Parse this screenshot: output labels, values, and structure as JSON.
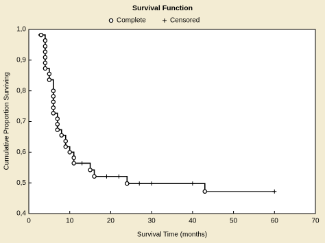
{
  "chart_data": {
    "type": "survival",
    "title": "Survival Function",
    "x_label": "Survival Time (months)",
    "y_label": "Cumulative Proportion Surviving",
    "xlim": [
      0,
      70
    ],
    "xticks": [
      0,
      10,
      20,
      30,
      40,
      50,
      60,
      70
    ],
    "ylim": [
      0.4,
      1.0
    ],
    "yticks": [
      {
        "value": 0.4,
        "label": "0,4"
      },
      {
        "value": 0.5,
        "label": "0,5"
      },
      {
        "value": 0.6,
        "label": "0,6"
      },
      {
        "value": 0.7,
        "label": "0,7"
      },
      {
        "value": 0.8,
        "label": "0,8"
      },
      {
        "value": 0.9,
        "label": "0,9"
      },
      {
        "value": 1.0,
        "label": "1,0"
      }
    ],
    "series": [
      {
        "name": "Complete",
        "color": "#000000",
        "x": [
          3,
          4,
          4,
          4,
          4,
          4,
          4,
          5,
          5,
          6,
          6,
          6,
          6,
          6,
          7,
          7,
          7,
          8,
          9,
          9,
          10,
          11,
          11,
          15,
          16,
          24,
          43
        ],
        "values": [
          0.982,
          0.964,
          0.945,
          0.927,
          0.909,
          0.891,
          0.873,
          0.855,
          0.836,
          0.8,
          0.782,
          0.764,
          0.745,
          0.727,
          0.709,
          0.691,
          0.673,
          0.655,
          0.636,
          0.618,
          0.6,
          0.582,
          0.564,
          0.542,
          0.521,
          0.498,
          0.472
        ]
      },
      {
        "name": "Censored",
        "color": "#000000",
        "x": [
          13,
          19,
          22,
          27,
          30,
          40,
          60
        ],
        "values": [
          0.564,
          0.521,
          0.521,
          0.498,
          0.498,
          0.498,
          0.472
        ]
      }
    ]
  }
}
